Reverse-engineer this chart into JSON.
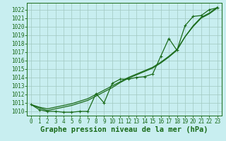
{
  "bg_color": "#c8eef0",
  "grid_color": "#a0c8c0",
  "line_color": "#1a6b1a",
  "marker_color": "#1a6b1a",
  "title": "Graphe pression niveau de la mer (hPa)",
  "ylim": [
    1009.5,
    1022.8
  ],
  "xlim": [
    -0.5,
    23.5
  ],
  "yticks": [
    1010,
    1011,
    1012,
    1013,
    1014,
    1015,
    1016,
    1017,
    1018,
    1019,
    1020,
    1021,
    1022
  ],
  "xticks": [
    0,
    1,
    2,
    3,
    4,
    5,
    6,
    7,
    8,
    9,
    10,
    11,
    12,
    13,
    14,
    15,
    16,
    17,
    18,
    19,
    20,
    21,
    22,
    23
  ],
  "series_marked": [
    1010.8,
    1010.2,
    1010.0,
    1010.0,
    1009.9,
    1009.9,
    1010.0,
    1010.0,
    1012.1,
    1011.0,
    1013.3,
    1013.8,
    1013.8,
    1014.0,
    1014.1,
    1014.4,
    1016.5,
    1018.6,
    1017.2,
    1020.1,
    1021.2,
    1021.3,
    1022.0,
    1022.2
  ],
  "series_smooth1": [
    1010.8,
    1010.5,
    1010.3,
    1010.5,
    1010.7,
    1010.9,
    1011.2,
    1011.5,
    1012.0,
    1012.5,
    1013.0,
    1013.5,
    1014.0,
    1014.4,
    1014.8,
    1015.2,
    1015.8,
    1016.5,
    1017.3,
    1018.8,
    1020.0,
    1021.0,
    1021.5,
    1022.2
  ],
  "series_smooth2": [
    1010.8,
    1010.4,
    1010.1,
    1010.3,
    1010.5,
    1010.7,
    1011.0,
    1011.3,
    1011.8,
    1012.3,
    1012.8,
    1013.4,
    1013.9,
    1014.3,
    1014.7,
    1015.1,
    1015.7,
    1016.4,
    1017.2,
    1018.8,
    1020.1,
    1021.1,
    1021.6,
    1022.3
  ],
  "title_fontsize": 7.5,
  "tick_fontsize": 5.5
}
